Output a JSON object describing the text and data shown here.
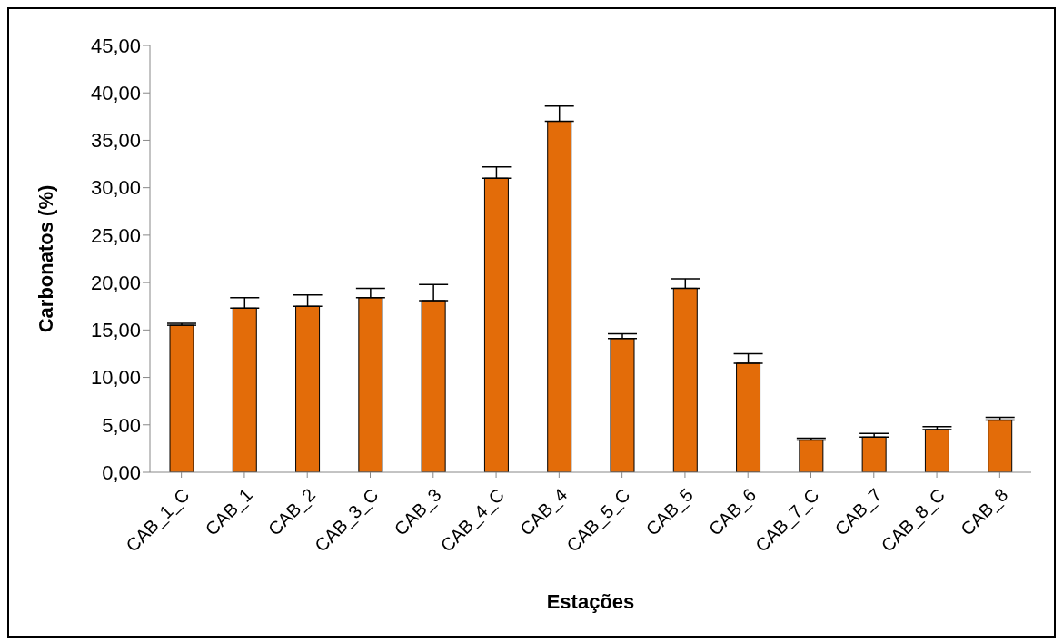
{
  "chart_data": {
    "type": "bar",
    "xlabel": "Estações",
    "ylabel": "Carbonatos (%)",
    "categories": [
      "CAB_1_C",
      "CAB_1",
      "CAB_2",
      "CAB_3_C",
      "CAB_3",
      "CAB_4_C",
      "CAB_4",
      "CAB_5_C",
      "CAB_5",
      "CAB_6",
      "CAB_7_C",
      "CAB_7",
      "CAB_8_C",
      "CAB_8"
    ],
    "values": [
      15.5,
      17.3,
      17.5,
      18.4,
      18.1,
      31.0,
      37.0,
      14.1,
      19.4,
      11.5,
      3.4,
      3.7,
      4.5,
      5.5
    ],
    "errors": [
      [
        15.5,
        15.7
      ],
      [
        17.3,
        18.4
      ],
      [
        17.5,
        18.7
      ],
      [
        18.4,
        19.4
      ],
      [
        18.1,
        19.8
      ],
      [
        31.0,
        32.2
      ],
      [
        37.0,
        38.6
      ],
      [
        14.1,
        14.6
      ],
      [
        19.4,
        20.4
      ],
      [
        11.5,
        12.5
      ],
      [
        3.4,
        3.6
      ],
      [
        3.7,
        4.1
      ],
      [
        4.5,
        4.8
      ],
      [
        5.5,
        5.8
      ]
    ],
    "color": "#e36c09",
    "ylim": [
      0,
      45
    ],
    "yticks": [
      {
        "value": 0,
        "label": "0,00"
      },
      {
        "value": 5,
        "label": "5,00"
      },
      {
        "value": 10,
        "label": "10,00"
      },
      {
        "value": 15,
        "label": "15,00"
      },
      {
        "value": 20,
        "label": "20,00"
      },
      {
        "value": 25,
        "label": "25,00"
      },
      {
        "value": 30,
        "label": "30,00"
      },
      {
        "value": 35,
        "label": "35,00"
      },
      {
        "value": 40,
        "label": "40,00"
      },
      {
        "value": 45,
        "label": "45,00"
      }
    ],
    "grid": false,
    "legend": false
  }
}
